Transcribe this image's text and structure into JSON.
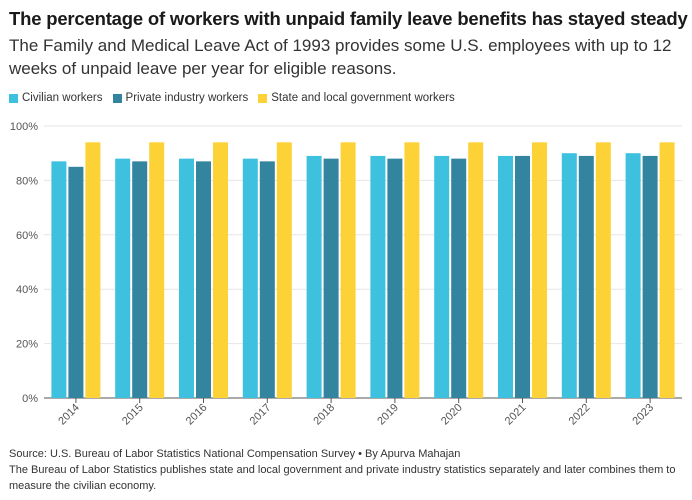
{
  "header": {
    "title": "The percentage of workers with unpaid family leave benefits has stayed steady",
    "subtitle": "The Family and Medical Leave Act of 1993 provides some U.S. employees with up to 12 weeks of unpaid leave per year for eligible reasons."
  },
  "colors": {
    "civilian": "#3ec0df",
    "private": "#33849e",
    "state": "#fdd236",
    "grid": "#e6e6e6",
    "axis": "#555555"
  },
  "chart_data": {
    "type": "bar",
    "title": "The percentage of workers with unpaid family leave benefits has stayed steady",
    "xlabel": "",
    "ylabel": "",
    "ylim": [
      0,
      100
    ],
    "yticks": [
      "0%",
      "20%",
      "40%",
      "60%",
      "80%",
      "100%"
    ],
    "categories": [
      "2014",
      "2015",
      "2016",
      "2017",
      "2018",
      "2019",
      "2020",
      "2021",
      "2022",
      "2023"
    ],
    "legend_position": "top-left",
    "series": [
      {
        "name": "Civilian workers",
        "color_key": "civilian",
        "values": [
          87,
          88,
          88,
          88,
          89,
          89,
          89,
          89,
          90,
          90
        ]
      },
      {
        "name": "Private industry workers",
        "color_key": "private",
        "values": [
          85,
          87,
          87,
          87,
          88,
          88,
          88,
          89,
          89,
          89
        ]
      },
      {
        "name": "State and local government workers",
        "color_key": "state",
        "values": [
          94,
          94,
          94,
          94,
          94,
          94,
          94,
          94,
          94,
          94
        ]
      }
    ]
  },
  "footer": {
    "source": "Source: U.S. Bureau of Labor Statistics National Compensation Survey • By Apurva Mahajan",
    "note": "The Bureau of Labor Statistics publishes state and local government and private industry statistics separately and later combines them to measure the civilian economy."
  }
}
